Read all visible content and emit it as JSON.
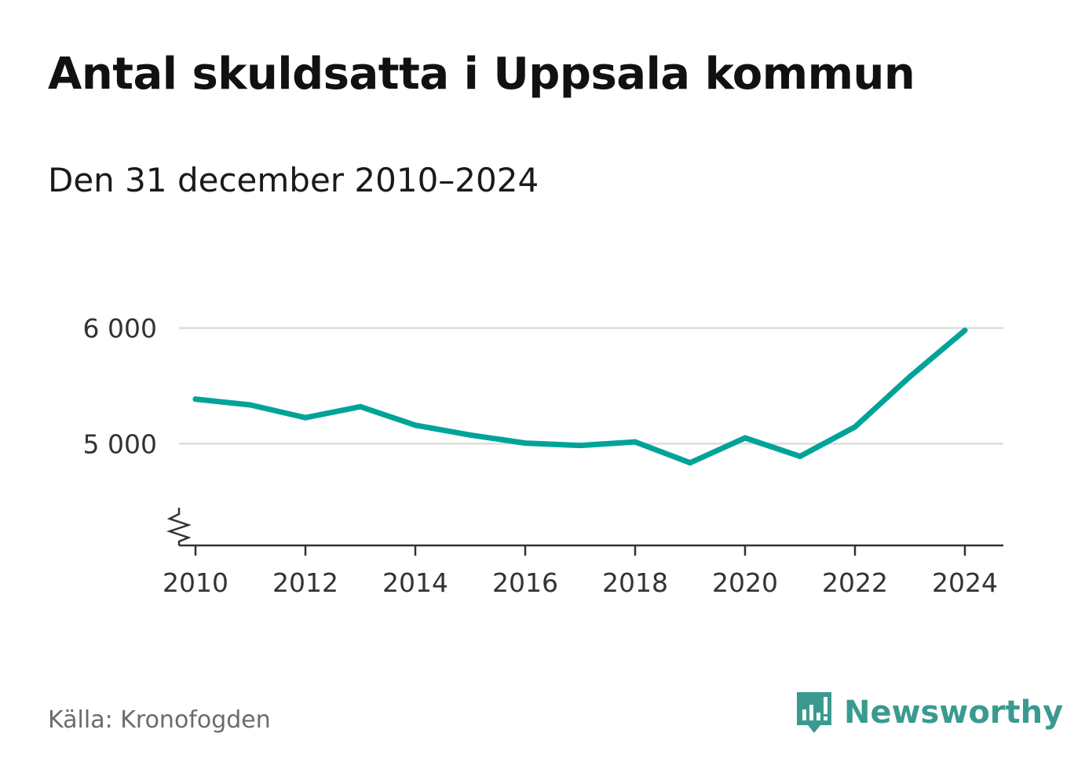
{
  "header": {
    "title": "Antal skuldsatta i Uppsala kommun",
    "subtitle": "Den 31 december 2010–2024"
  },
  "footer": {
    "source": "Källa: Kronofogden",
    "brand": "Newsworthy"
  },
  "colors": {
    "line": "#00a398",
    "grid": "#dddddd",
    "axis": "#333333",
    "brand": "#3a9a8f"
  },
  "chart_data": {
    "type": "line",
    "title": "Antal skuldsatta i Uppsala kommun",
    "subtitle": "Den 31 december 2010–2024",
    "xlabel": "",
    "ylabel": "",
    "x": [
      2010,
      2011,
      2012,
      2013,
      2014,
      2015,
      2016,
      2017,
      2018,
      2019,
      2020,
      2021,
      2022,
      2023,
      2024
    ],
    "series": [
      {
        "name": "Antal skuldsatta",
        "values": [
          5385,
          5335,
          5225,
          5320,
          5160,
          5075,
          5005,
          4985,
          5015,
          4835,
          5050,
          4890,
          5145,
          5580,
          5980
        ]
      }
    ],
    "xticks": [
      2010,
      2012,
      2014,
      2016,
      2018,
      2020,
      2022,
      2024
    ],
    "xtick_labels": [
      "2010",
      "2012",
      "2014",
      "2016",
      "2018",
      "2020",
      "2022",
      "2024"
    ],
    "yticks": [
      5000,
      6000
    ],
    "ytick_labels": [
      "5 000",
      "6 000"
    ],
    "xlim": [
      2009.7,
      2024.7
    ],
    "ylim": [
      4120,
      6000
    ],
    "axis_break": true,
    "grid": true,
    "legend": "none"
  }
}
